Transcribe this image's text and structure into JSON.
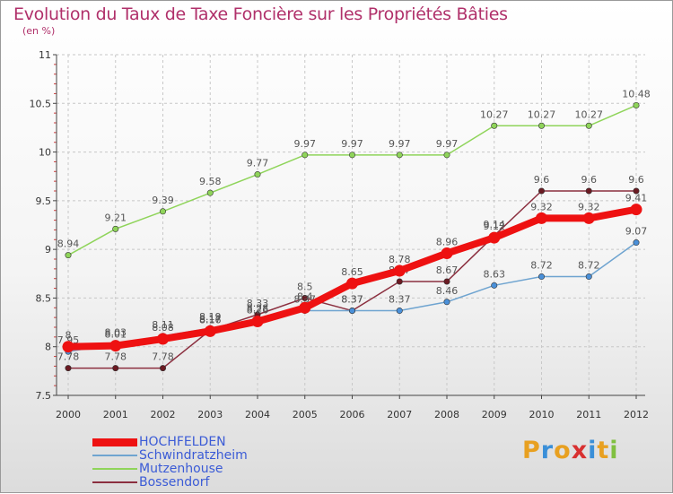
{
  "title": "Evolution du Taux de Taxe Foncière sur les Propriétés Bâties",
  "unit_label": "(en %)",
  "logo": {
    "text": "Proxiti",
    "letters": [
      "P",
      "r",
      "o",
      "x",
      "i",
      "t",
      "i"
    ],
    "colors": [
      "#e8a020",
      "#3a8fd8",
      "#e8a020",
      "#d83030",
      "#3a8fd8",
      "#e8a020",
      "#80c040"
    ]
  },
  "chart_data": {
    "type": "line",
    "x": [
      "2000",
      "2001",
      "2002",
      "2003",
      "2004",
      "2005",
      "2006",
      "2007",
      "2008",
      "2009",
      "2010",
      "2011",
      "2012"
    ],
    "ylim": [
      7.5,
      11
    ],
    "yticks": [
      "7.5",
      "8",
      "8.5",
      "9",
      "9.5",
      "10",
      "10.5",
      "11"
    ],
    "grid": true,
    "legend_position": "bottom-left",
    "series": [
      {
        "name": "Mutzenhouse",
        "color": "#8fd45a",
        "width": 1.5,
        "marker_fill": "#8fd45a",
        "values": [
          8.94,
          9.21,
          9.39,
          9.58,
          9.77,
          9.97,
          9.97,
          9.97,
          9.97,
          10.27,
          10.27,
          10.27,
          10.48
        ],
        "labels": [
          "8.94",
          "9.21",
          "9.39",
          "9.58",
          "9.77",
          "9.97",
          "9.97",
          "9.97",
          "9.97",
          "10.27",
          "10.27",
          "10.27",
          "10.48"
        ]
      },
      {
        "name": "Bossendorf",
        "color": "#8b2f3f",
        "width": 1.5,
        "marker_fill": "#6b1a22",
        "values": [
          7.78,
          7.78,
          7.78,
          8.17,
          8.33,
          8.5,
          8.37,
          8.67,
          8.67,
          9.14,
          9.6,
          9.6,
          9.6
        ],
        "labels": [
          "7.78",
          "7.78",
          "7.78",
          "8.17",
          "8.33",
          "8.5",
          "8.37",
          "8.67",
          "8.67",
          "9.14",
          "9.6",
          "9.6",
          "9.6"
        ]
      },
      {
        "name": "Schwindratzheim",
        "color": "#6fa4d0",
        "width": 1.5,
        "marker_fill": "#4a90d9",
        "values": [
          7.95,
          8.03,
          8.11,
          8.19,
          8.28,
          8.37,
          8.37,
          8.37,
          8.46,
          8.63,
          8.72,
          8.72,
          9.07
        ],
        "labels": [
          "7.95",
          "8.03",
          "8.11",
          "8.19",
          "8.28",
          "8.37",
          "8.37",
          "8.37",
          "8.46",
          "8.63",
          "8.72",
          "8.72",
          "9.07"
        ]
      },
      {
        "name": "HOCHFELDEN",
        "color": "#ee1111",
        "width": 8,
        "marker_fill": "#ee1111",
        "values": [
          8,
          8.01,
          8.08,
          8.16,
          8.26,
          8.4,
          8.65,
          8.78,
          8.96,
          9.12,
          9.32,
          9.32,
          9.41
        ],
        "labels": [
          "8",
          "8.01",
          "8.08",
          "8.16",
          "8.26",
          "8.4",
          "8.65",
          "8.78",
          "8.96",
          "9.12",
          "9.32",
          "9.32",
          "9.41"
        ]
      }
    ],
    "legend": [
      {
        "name": "HOCHFELDEN",
        "color": "#ee1111",
        "thickness": 9
      },
      {
        "name": "Schwindratzheim",
        "color": "#6fa4d0",
        "thickness": 2
      },
      {
        "name": "Mutzenhouse",
        "color": "#8fd45a",
        "thickness": 2
      },
      {
        "name": "Bossendorf",
        "color": "#8b2f3f",
        "thickness": 2
      }
    ]
  }
}
